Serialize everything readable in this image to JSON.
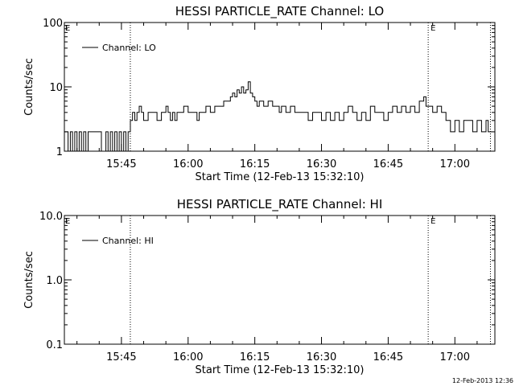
{
  "footer": {
    "timestamp": "12-Feb-2013 12:36"
  },
  "chart_data": [
    {
      "type": "line",
      "title": "HESSI PARTICLE_RATE Channel: LO",
      "xlabel": "Start Time (12-Feb-13 15:32:10)",
      "ylabel": "Counts/sec",
      "yscale": "log",
      "ylim": [
        1,
        100
      ],
      "yticks": [
        {
          "v": 1,
          "label": "1"
        },
        {
          "v": 10,
          "label": "10"
        },
        {
          "v": 100,
          "label": "100"
        }
      ],
      "xlim": [
        "15:32:10",
        "17:09:00"
      ],
      "xticks": [
        "15:45",
        "16:00",
        "16:15",
        "16:30",
        "16:45",
        "17:00"
      ],
      "legend": {
        "label": "Channel: LO",
        "position": "top-left"
      },
      "markers": [
        {
          "time": "15:47:00",
          "label": "",
          "style": "dotted"
        },
        {
          "time": "16:54:00",
          "label": "E",
          "style": "dotted"
        },
        {
          "time": "17:08:00",
          "label": "",
          "style": "dotted"
        }
      ],
      "corner_label": "E",
      "series": [
        {
          "name": "Channel: LO",
          "style": "histogram",
          "points": [
            [
              "15:32:10",
              2
            ],
            [
              "15:33:00",
              1
            ],
            [
              "15:33:30",
              2
            ],
            [
              "15:34:00",
              1
            ],
            [
              "15:34:30",
              2
            ],
            [
              "15:35:00",
              1
            ],
            [
              "15:35:30",
              2
            ],
            [
              "15:36:00",
              1
            ],
            [
              "15:36:30",
              2
            ],
            [
              "15:37:00",
              1
            ],
            [
              "15:37:30",
              2
            ],
            [
              "15:38:00",
              2
            ],
            [
              "15:40:00",
              2
            ],
            [
              "15:40:30",
              1
            ],
            [
              "15:41:00",
              1
            ],
            [
              "15:41:30",
              2
            ],
            [
              "15:42:00",
              1
            ],
            [
              "15:42:30",
              2
            ],
            [
              "15:43:00",
              1
            ],
            [
              "15:43:30",
              2
            ],
            [
              "15:44:00",
              1
            ],
            [
              "15:44:30",
              2
            ],
            [
              "15:45:00",
              1
            ],
            [
              "15:45:30",
              2
            ],
            [
              "15:46:00",
              1
            ],
            [
              "15:46:30",
              2
            ],
            [
              "15:47:00",
              3
            ],
            [
              "15:47:30",
              4
            ],
            [
              "15:48:00",
              3
            ],
            [
              "15:48:30",
              4
            ],
            [
              "15:49:00",
              5
            ],
            [
              "15:49:30",
              4
            ],
            [
              "15:50:00",
              3
            ],
            [
              "15:51:00",
              4
            ],
            [
              "15:52:00",
              4
            ],
            [
              "15:53:00",
              3
            ],
            [
              "15:54:00",
              4
            ],
            [
              "15:55:00",
              5
            ],
            [
              "15:55:30",
              4
            ],
            [
              "15:56:00",
              3
            ],
            [
              "15:56:30",
              4
            ],
            [
              "15:57:00",
              3
            ],
            [
              "15:57:30",
              4
            ],
            [
              "15:58:00",
              4
            ],
            [
              "15:59:00",
              5
            ],
            [
              "16:00:00",
              4
            ],
            [
              "16:01:00",
              4
            ],
            [
              "16:02:00",
              3
            ],
            [
              "16:02:30",
              4
            ],
            [
              "16:03:00",
              4
            ],
            [
              "16:04:00",
              5
            ],
            [
              "16:05:00",
              4
            ],
            [
              "16:06:00",
              5
            ],
            [
              "16:07:00",
              5
            ],
            [
              "16:08:00",
              6
            ],
            [
              "16:09:00",
              6
            ],
            [
              "16:09:30",
              7
            ],
            [
              "16:10:00",
              8
            ],
            [
              "16:10:30",
              7
            ],
            [
              "16:11:00",
              9
            ],
            [
              "16:11:30",
              8
            ],
            [
              "16:12:00",
              10
            ],
            [
              "16:12:30",
              8
            ],
            [
              "16:13:00",
              9
            ],
            [
              "16:13:30",
              12
            ],
            [
              "16:14:00",
              8
            ],
            [
              "16:14:30",
              7
            ],
            [
              "16:15:00",
              6
            ],
            [
              "16:15:30",
              5
            ],
            [
              "16:16:00",
              6
            ],
            [
              "16:17:00",
              5
            ],
            [
              "16:18:00",
              6
            ],
            [
              "16:19:00",
              5
            ],
            [
              "16:20:00",
              5
            ],
            [
              "16:20:30",
              4
            ],
            [
              "16:21:00",
              5
            ],
            [
              "16:22:00",
              4
            ],
            [
              "16:23:00",
              5
            ],
            [
              "16:24:00",
              4
            ],
            [
              "16:25:00",
              4
            ],
            [
              "16:26:00",
              4
            ],
            [
              "16:27:00",
              3
            ],
            [
              "16:28:00",
              4
            ],
            [
              "16:29:00",
              4
            ],
            [
              "16:30:00",
              3
            ],
            [
              "16:31:00",
              4
            ],
            [
              "16:32:00",
              3
            ],
            [
              "16:33:00",
              4
            ],
            [
              "16:34:00",
              3
            ],
            [
              "16:35:00",
              4
            ],
            [
              "16:36:00",
              5
            ],
            [
              "16:37:00",
              4
            ],
            [
              "16:38:00",
              3
            ],
            [
              "16:39:00",
              4
            ],
            [
              "16:40:00",
              3
            ],
            [
              "16:41:00",
              5
            ],
            [
              "16:42:00",
              4
            ],
            [
              "16:43:00",
              4
            ],
            [
              "16:44:00",
              3
            ],
            [
              "16:45:00",
              4
            ],
            [
              "16:46:00",
              5
            ],
            [
              "16:47:00",
              4
            ],
            [
              "16:48:00",
              5
            ],
            [
              "16:49:00",
              4
            ],
            [
              "16:50:00",
              5
            ],
            [
              "16:51:00",
              4
            ],
            [
              "16:52:00",
              6
            ],
            [
              "16:53:00",
              7
            ],
            [
              "16:53:30",
              5
            ],
            [
              "16:54:00",
              5
            ],
            [
              "16:55:00",
              4
            ],
            [
              "16:56:00",
              5
            ],
            [
              "16:57:00",
              4
            ],
            [
              "16:58:00",
              3
            ],
            [
              "16:59:00",
              2
            ],
            [
              "17:00:00",
              3
            ],
            [
              "17:01:00",
              2
            ],
            [
              "17:02:00",
              3
            ],
            [
              "17:03:00",
              3
            ],
            [
              "17:04:00",
              2
            ],
            [
              "17:05:00",
              3
            ],
            [
              "17:06:00",
              2
            ],
            [
              "17:07:00",
              3
            ],
            [
              "17:07:30",
              2
            ],
            [
              "17:08:00",
              2
            ]
          ]
        }
      ]
    },
    {
      "type": "line",
      "title": "HESSI PARTICLE_RATE Channel: HI",
      "xlabel": "Start Time (12-Feb-13 15:32:10)",
      "ylabel": "Counts/sec",
      "yscale": "log",
      "ylim": [
        0.1,
        10
      ],
      "yticks": [
        {
          "v": 0.1,
          "label": "0.1"
        },
        {
          "v": 1,
          "label": "1.0"
        },
        {
          "v": 10,
          "label": "10.0"
        }
      ],
      "xlim": [
        "15:32:10",
        "17:09:00"
      ],
      "xticks": [
        "15:45",
        "16:00",
        "16:15",
        "16:30",
        "16:45",
        "17:00"
      ],
      "legend": {
        "label": "Channel: HI",
        "position": "top-left"
      },
      "markers": [
        {
          "time": "15:47:00",
          "label": "",
          "style": "dotted"
        },
        {
          "time": "16:54:00",
          "label": "E",
          "style": "dotted"
        },
        {
          "time": "17:08:00",
          "label": "",
          "style": "dotted"
        }
      ],
      "corner_label": "E",
      "series": [
        {
          "name": "Channel: HI",
          "style": "histogram",
          "points": []
        }
      ]
    }
  ]
}
